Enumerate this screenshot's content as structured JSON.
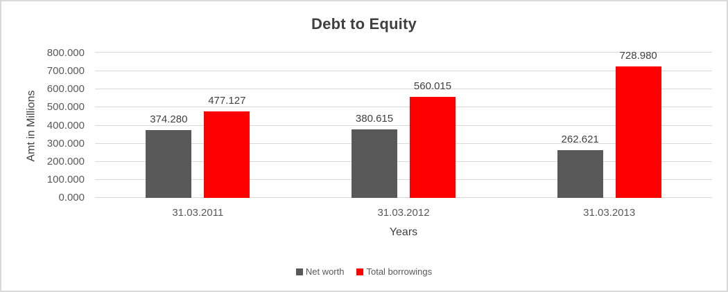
{
  "chart_data": {
    "type": "bar",
    "title": "Debt to Equity",
    "xlabel": "Years",
    "ylabel": "Amt in Millions",
    "categories": [
      "31.03.2011",
      "31.03.2012",
      "31.03.2013"
    ],
    "series": [
      {
        "name": "Net worth",
        "color": "#595959",
        "values": [
          374.28,
          380.615,
          262.621
        ],
        "value_labels": [
          "374.280",
          "380.615",
          "262.621"
        ]
      },
      {
        "name": "Total borrowings",
        "color": "#ff0000",
        "values": [
          477.127,
          560.015,
          728.98
        ],
        "value_labels": [
          "477.127",
          "560.015",
          "728.980"
        ]
      }
    ],
    "ylim": [
      0,
      800
    ],
    "ytick_step": 100,
    "ytick_labels": [
      "0.000",
      "100.000",
      "200.000",
      "300.000",
      "400.000",
      "500.000",
      "600.000",
      "700.000",
      "800.000"
    ],
    "grid": true,
    "legend_position": "bottom",
    "styles": {
      "grid_color": "#d9d9d9",
      "border_color": "#d9d9d9",
      "title_color": "#404040",
      "tick_text_color": "#595959",
      "data_label_color": "#404040"
    }
  }
}
